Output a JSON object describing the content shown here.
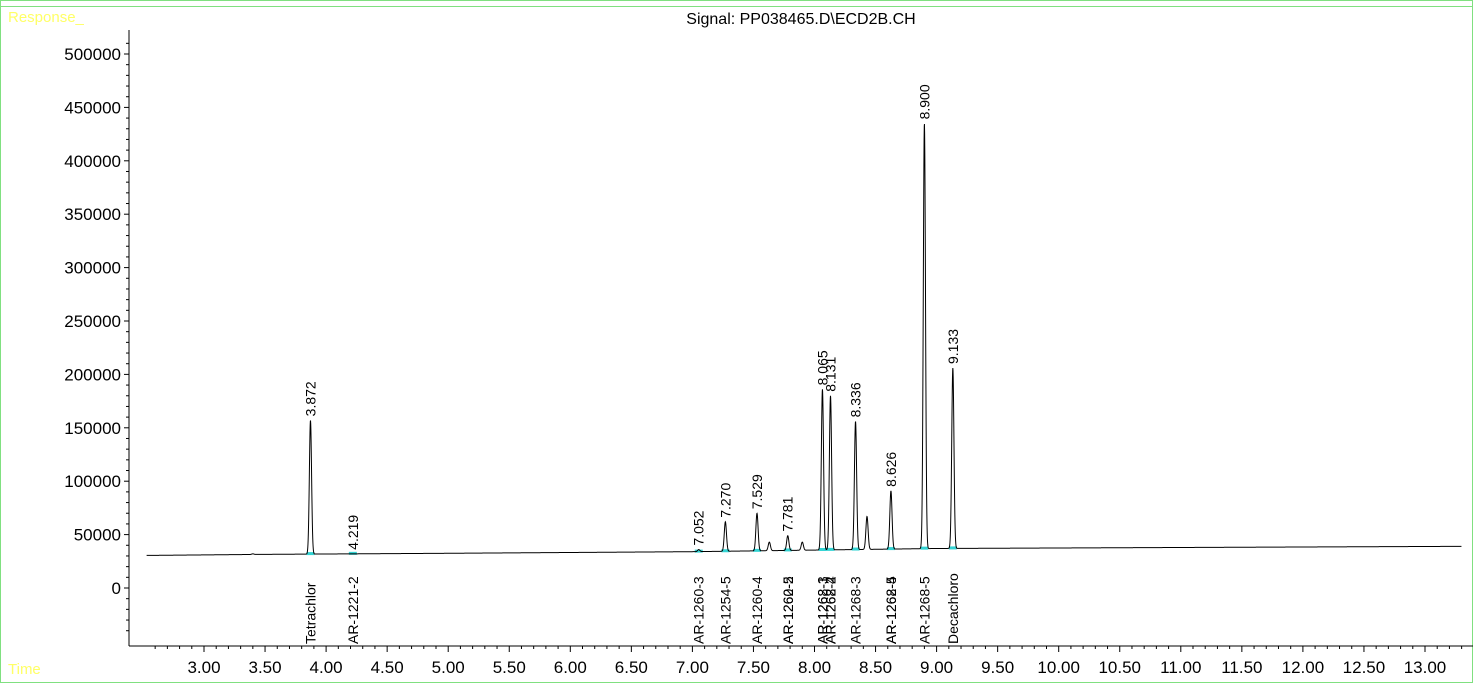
{
  "labels": {
    "response": "Response_",
    "time": "Time"
  },
  "colors": {
    "frame": "#80e080",
    "corner_text": "#ffff66",
    "trace": "#000000",
    "baseline_fill": "#00c8c8"
  },
  "chart_data": {
    "type": "line",
    "title": "Signal: PP038465.D\\ECD2B.CH",
    "xlabel": "Time",
    "ylabel": "Response_",
    "xlim": [
      2.53,
      13.3
    ],
    "ylim": [
      -50000,
      520000
    ],
    "grid": false,
    "x_ticks": [
      3.0,
      3.5,
      4.0,
      4.5,
      5.0,
      5.5,
      6.0,
      6.5,
      7.0,
      7.5,
      8.0,
      8.5,
      9.0,
      9.5,
      10.0,
      10.5,
      11.0,
      11.5,
      12.0,
      12.5,
      13.0
    ],
    "x_tick_labels": [
      "3.00",
      "3.50",
      "4.00",
      "4.50",
      "5.00",
      "5.50",
      "6.00",
      "6.50",
      "7.00",
      "7.50",
      "8.00",
      "8.50",
      "9.00",
      "9.50",
      "10.00",
      "10.50",
      "11.00",
      "11.50",
      "12.00",
      "12.50",
      "13.00"
    ],
    "y_ticks": [
      0,
      50000,
      100000,
      150000,
      200000,
      250000,
      300000,
      350000,
      400000,
      450000,
      500000
    ],
    "y_tick_labels": [
      "0",
      "50000",
      "100000",
      "150000",
      "200000",
      "250000",
      "300000",
      "350000",
      "400000",
      "450000",
      "500000"
    ],
    "baseline": [
      [
        2.53,
        30500
      ],
      [
        3.5,
        31500
      ],
      [
        5.0,
        32500
      ],
      [
        7.0,
        34000
      ],
      [
        9.0,
        37000
      ],
      [
        13.3,
        39000
      ]
    ],
    "peaks": [
      {
        "rt": 3.872,
        "height": 157000,
        "label": "3.872"
      },
      {
        "rt": 4.219,
        "height": 32000,
        "label": "4.219"
      },
      {
        "rt": 7.052,
        "height": 36000,
        "label": "7.052"
      },
      {
        "rt": 7.27,
        "height": 62000,
        "label": "7.270"
      },
      {
        "rt": 7.529,
        "height": 70000,
        "label": "7.529"
      },
      {
        "rt": 7.781,
        "height": 49000,
        "label": "7.781"
      },
      {
        "rt": 8.065,
        "height": 186000,
        "label": "8.065"
      },
      {
        "rt": 8.131,
        "height": 180000,
        "label": "8.131"
      },
      {
        "rt": 8.336,
        "height": 156000,
        "label": "8.336"
      },
      {
        "rt": 8.626,
        "height": 91000,
        "label": "8.626"
      },
      {
        "rt": 8.9,
        "height": 435000,
        "label": "8.900"
      },
      {
        "rt": 9.133,
        "height": 206000,
        "label": "9.133"
      }
    ],
    "minor_peaks": [
      {
        "rt": 3.4,
        "height": 32000
      },
      {
        "rt": 7.63,
        "height": 43000
      },
      {
        "rt": 7.9,
        "height": 43000
      },
      {
        "rt": 8.43,
        "height": 67000
      }
    ],
    "compounds": [
      {
        "rt": 3.872,
        "label": "Tetrachlor"
      },
      {
        "rt": 4.219,
        "label": "AR-1221-2"
      },
      {
        "rt": 7.052,
        "label": "AR-1260-3"
      },
      {
        "rt": 7.27,
        "label": "AR-1254-5"
      },
      {
        "rt": 7.529,
        "label": "AR-1260-4"
      },
      {
        "rt": 7.781,
        "label": "AR-1262-2"
      },
      {
        "rt": 7.781,
        "label": "AR-1260-5"
      },
      {
        "rt": 8.065,
        "label": "AR-1268-1"
      },
      {
        "rt": 8.065,
        "label": "AR-1262-3"
      },
      {
        "rt": 8.131,
        "label": "AR-1268-2"
      },
      {
        "rt": 8.131,
        "label": "AR-1262-4"
      },
      {
        "rt": 8.336,
        "label": "AR-1268-3"
      },
      {
        "rt": 8.626,
        "label": "AR-1268-4"
      },
      {
        "rt": 8.626,
        "label": "AR-1262-5"
      },
      {
        "rt": 8.9,
        "label": "AR-1268-5"
      },
      {
        "rt": 9.133,
        "label": "Decachloro"
      }
    ]
  }
}
